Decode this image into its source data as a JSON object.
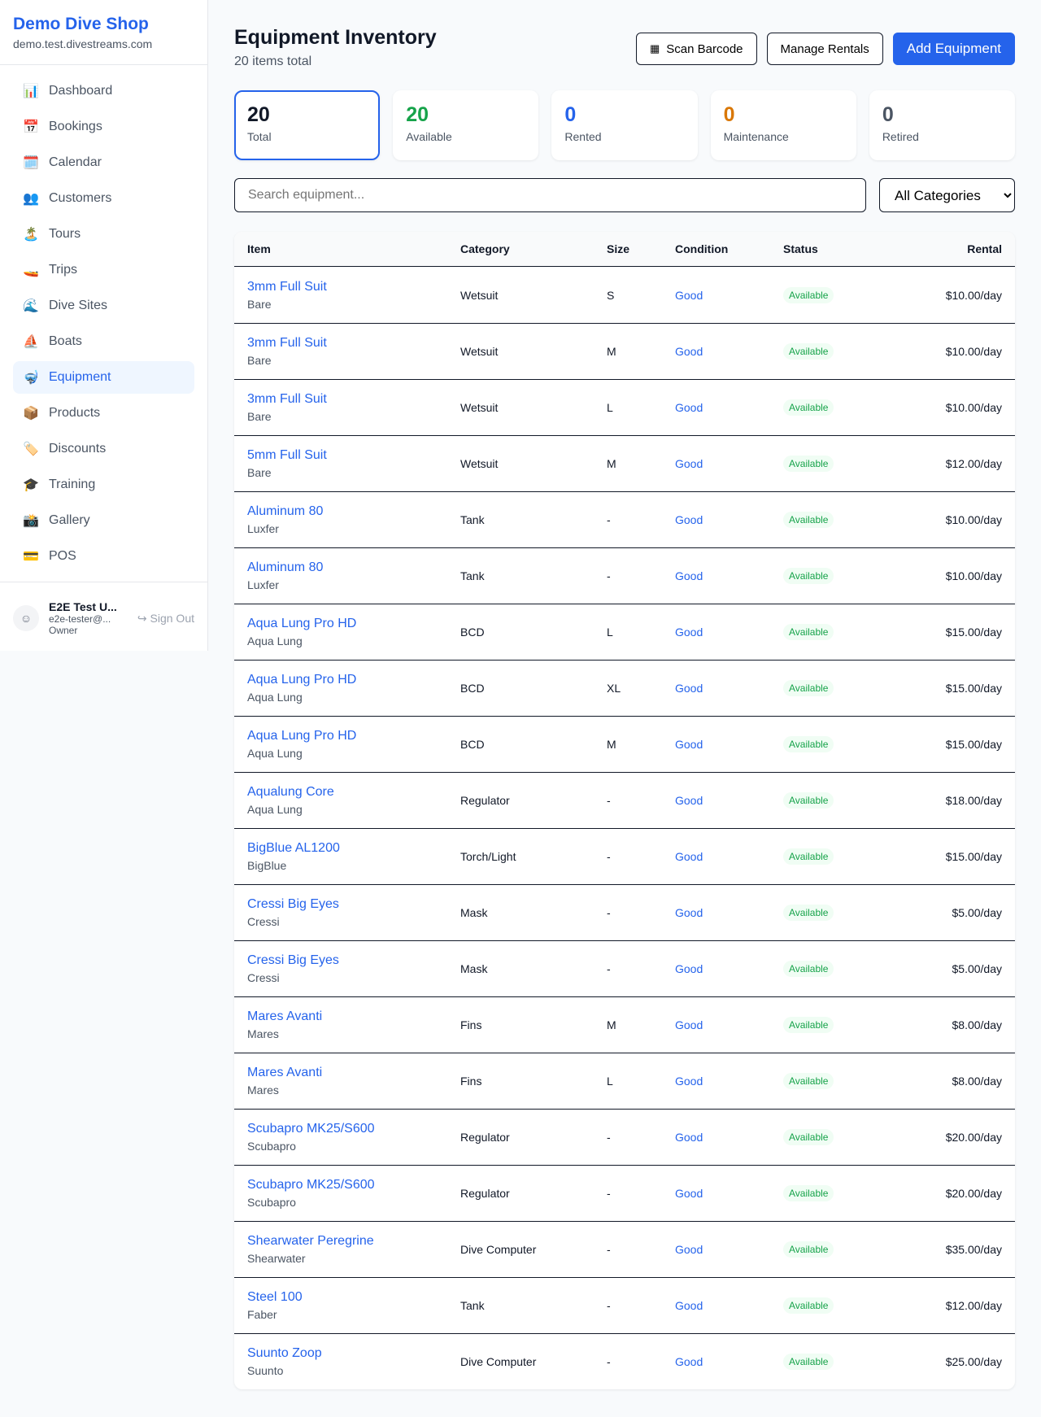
{
  "sidebar": {
    "shop_name": "Demo Dive Shop",
    "domain": "demo.test.divestreams.com",
    "items": [
      {
        "label": "Dashboard",
        "icon": "📊"
      },
      {
        "label": "Bookings",
        "icon": "📅"
      },
      {
        "label": "Calendar",
        "icon": "🗓️"
      },
      {
        "label": "Customers",
        "icon": "👥"
      },
      {
        "label": "Tours",
        "icon": "🏝️"
      },
      {
        "label": "Trips",
        "icon": "🚤"
      },
      {
        "label": "Dive Sites",
        "icon": "🌊"
      },
      {
        "label": "Boats",
        "icon": "⛵"
      },
      {
        "label": "Equipment",
        "icon": "🤿"
      },
      {
        "label": "Products",
        "icon": "📦"
      },
      {
        "label": "Discounts",
        "icon": "🏷️"
      },
      {
        "label": "Training",
        "icon": "🎓"
      },
      {
        "label": "Gallery",
        "icon": "📸"
      },
      {
        "label": "POS",
        "icon": "💳"
      }
    ],
    "active": "Equipment",
    "user": {
      "name": "E2E Test U...",
      "email": "e2e-tester@...",
      "role": "Owner",
      "sign_out": "Sign Out"
    }
  },
  "header": {
    "title": "Equipment Inventory",
    "subtitle": "20 items total",
    "scan": "Scan Barcode",
    "manage": "Manage Rentals",
    "add": "Add Equipment"
  },
  "stats": [
    {
      "value": "20",
      "label": "Total",
      "color": "#111827"
    },
    {
      "value": "20",
      "label": "Available",
      "color": "#16a34a"
    },
    {
      "value": "0",
      "label": "Rented",
      "color": "#2563eb"
    },
    {
      "value": "0",
      "label": "Maintenance",
      "color": "#d97706"
    },
    {
      "value": "0",
      "label": "Retired",
      "color": "#4b5563"
    }
  ],
  "filters": {
    "search_placeholder": "Search equipment...",
    "category": "All Categories"
  },
  "table": {
    "headers": [
      "Item",
      "Category",
      "Size",
      "Condition",
      "Status",
      "Rental"
    ],
    "rows": [
      [
        "3mm Full Suit",
        "Bare",
        "Wetsuit",
        "S",
        "Good",
        "Available",
        "$10.00/day"
      ],
      [
        "3mm Full Suit",
        "Bare",
        "Wetsuit",
        "M",
        "Good",
        "Available",
        "$10.00/day"
      ],
      [
        "3mm Full Suit",
        "Bare",
        "Wetsuit",
        "L",
        "Good",
        "Available",
        "$10.00/day"
      ],
      [
        "5mm Full Suit",
        "Bare",
        "Wetsuit",
        "M",
        "Good",
        "Available",
        "$12.00/day"
      ],
      [
        "Aluminum 80",
        "Luxfer",
        "Tank",
        "-",
        "Good",
        "Available",
        "$10.00/day"
      ],
      [
        "Aluminum 80",
        "Luxfer",
        "Tank",
        "-",
        "Good",
        "Available",
        "$10.00/day"
      ],
      [
        "Aqua Lung Pro HD",
        "Aqua Lung",
        "BCD",
        "L",
        "Good",
        "Available",
        "$15.00/day"
      ],
      [
        "Aqua Lung Pro HD",
        "Aqua Lung",
        "BCD",
        "XL",
        "Good",
        "Available",
        "$15.00/day"
      ],
      [
        "Aqua Lung Pro HD",
        "Aqua Lung",
        "BCD",
        "M",
        "Good",
        "Available",
        "$15.00/day"
      ],
      [
        "Aqualung Core",
        "Aqua Lung",
        "Regulator",
        "-",
        "Good",
        "Available",
        "$18.00/day"
      ],
      [
        "BigBlue AL1200",
        "BigBlue",
        "Torch/Light",
        "-",
        "Good",
        "Available",
        "$15.00/day"
      ],
      [
        "Cressi Big Eyes",
        "Cressi",
        "Mask",
        "-",
        "Good",
        "Available",
        "$5.00/day"
      ],
      [
        "Cressi Big Eyes",
        "Cressi",
        "Mask",
        "-",
        "Good",
        "Available",
        "$5.00/day"
      ],
      [
        "Mares Avanti",
        "Mares",
        "Fins",
        "M",
        "Good",
        "Available",
        "$8.00/day"
      ],
      [
        "Mares Avanti",
        "Mares",
        "Fins",
        "L",
        "Good",
        "Available",
        "$8.00/day"
      ],
      [
        "Scubapro MK25/S600",
        "Scubapro",
        "Regulator",
        "-",
        "Good",
        "Available",
        "$20.00/day"
      ],
      [
        "Scubapro MK25/S600",
        "Scubapro",
        "Regulator",
        "-",
        "Good",
        "Available",
        "$20.00/day"
      ],
      [
        "Shearwater Peregrine",
        "Shearwater",
        "Dive Computer",
        "-",
        "Good",
        "Available",
        "$35.00/day"
      ],
      [
        "Steel 100",
        "Faber",
        "Tank",
        "-",
        "Good",
        "Available",
        "$12.00/day"
      ],
      [
        "Suunto Zoop",
        "Suunto",
        "Dive Computer",
        "-",
        "Good",
        "Available",
        "$25.00/day"
      ]
    ]
  }
}
